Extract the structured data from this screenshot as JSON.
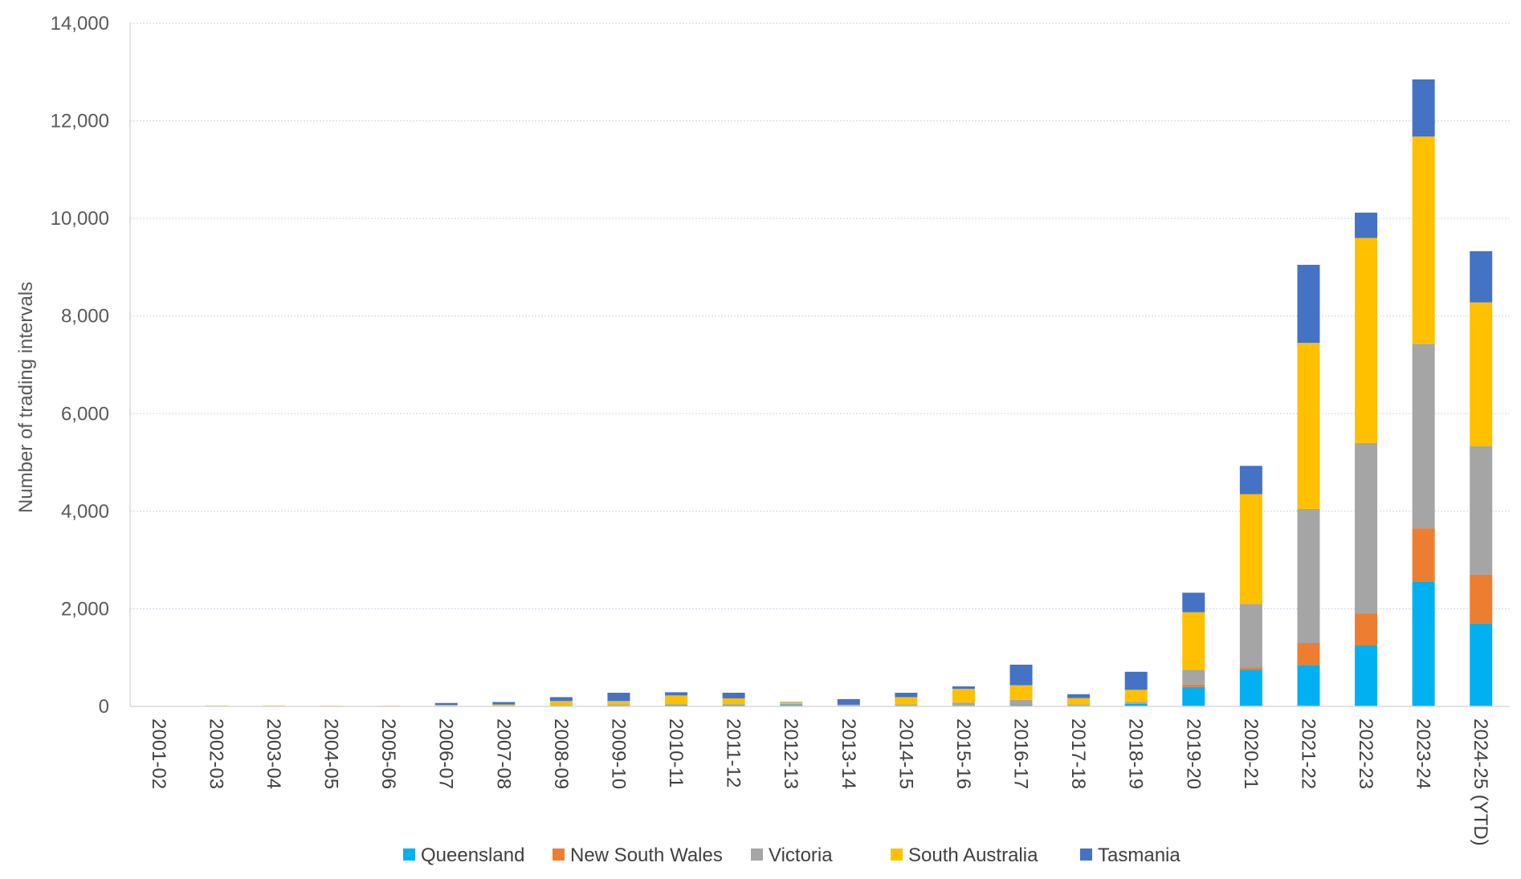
{
  "chart_data": {
    "type": "bar",
    "stacked": true,
    "title": "",
    "xlabel": "",
    "ylabel": "Number of trading intervals",
    "ylim": [
      0,
      14000
    ],
    "yticks": [
      0,
      2000,
      4000,
      6000,
      8000,
      10000,
      12000,
      14000
    ],
    "ytick_labels": [
      "0",
      "2,000",
      "4,000",
      "6,000",
      "8,000",
      "10,000",
      "12,000",
      "14,000"
    ],
    "grid": true,
    "legend_position": "bottom",
    "categories": [
      "2001-02",
      "2002-03",
      "2003-04",
      "2004-05",
      "2005-06",
      "2006-07",
      "2007-08",
      "2008-09",
      "2009-10",
      "2010-11",
      "2011-12",
      "2012-13",
      "2013-14",
      "2014-15",
      "2015-16",
      "2016-17",
      "2017-18",
      "2018-19",
      "2019-20",
      "2020-21",
      "2021-22",
      "2022-23",
      "2023-24",
      "2024-25 (YTD)"
    ],
    "series": [
      {
        "name": "Queensland",
        "color": "#00b0f0",
        "values": [
          0,
          0,
          0,
          0,
          0,
          5,
          5,
          15,
          20,
          25,
          25,
          30,
          15,
          20,
          20,
          25,
          20,
          50,
          400,
          750,
          850,
          1250,
          2550,
          1700
        ]
      },
      {
        "name": "New South Wales",
        "color": "#ed7d31",
        "values": [
          0,
          0,
          0,
          0,
          0,
          0,
          0,
          0,
          0,
          0,
          0,
          0,
          0,
          0,
          0,
          0,
          0,
          0,
          50,
          50,
          450,
          650,
          1100,
          1000
        ]
      },
      {
        "name": "Victoria",
        "color": "#a5a5a5",
        "values": [
          0,
          0,
          0,
          10,
          10,
          10,
          15,
          15,
          20,
          20,
          20,
          20,
          10,
          20,
          60,
          110,
          20,
          40,
          300,
          1300,
          2750,
          3500,
          3780,
          2630
        ]
      },
      {
        "name": "South Australia",
        "color": "#ffc000",
        "values": [
          0,
          20,
          20,
          5,
          5,
          15,
          20,
          80,
          70,
          180,
          120,
          30,
          10,
          150,
          280,
          300,
          130,
          250,
          1180,
          2250,
          3400,
          4200,
          4250,
          2950
        ]
      },
      {
        "name": "Tasmania",
        "color": "#4472c4",
        "values": [
          0,
          0,
          0,
          0,
          0,
          40,
          50,
          80,
          170,
          65,
          115,
          10,
          115,
          90,
          50,
          420,
          80,
          370,
          400,
          580,
          1600,
          520,
          1170,
          1050
        ]
      }
    ]
  }
}
